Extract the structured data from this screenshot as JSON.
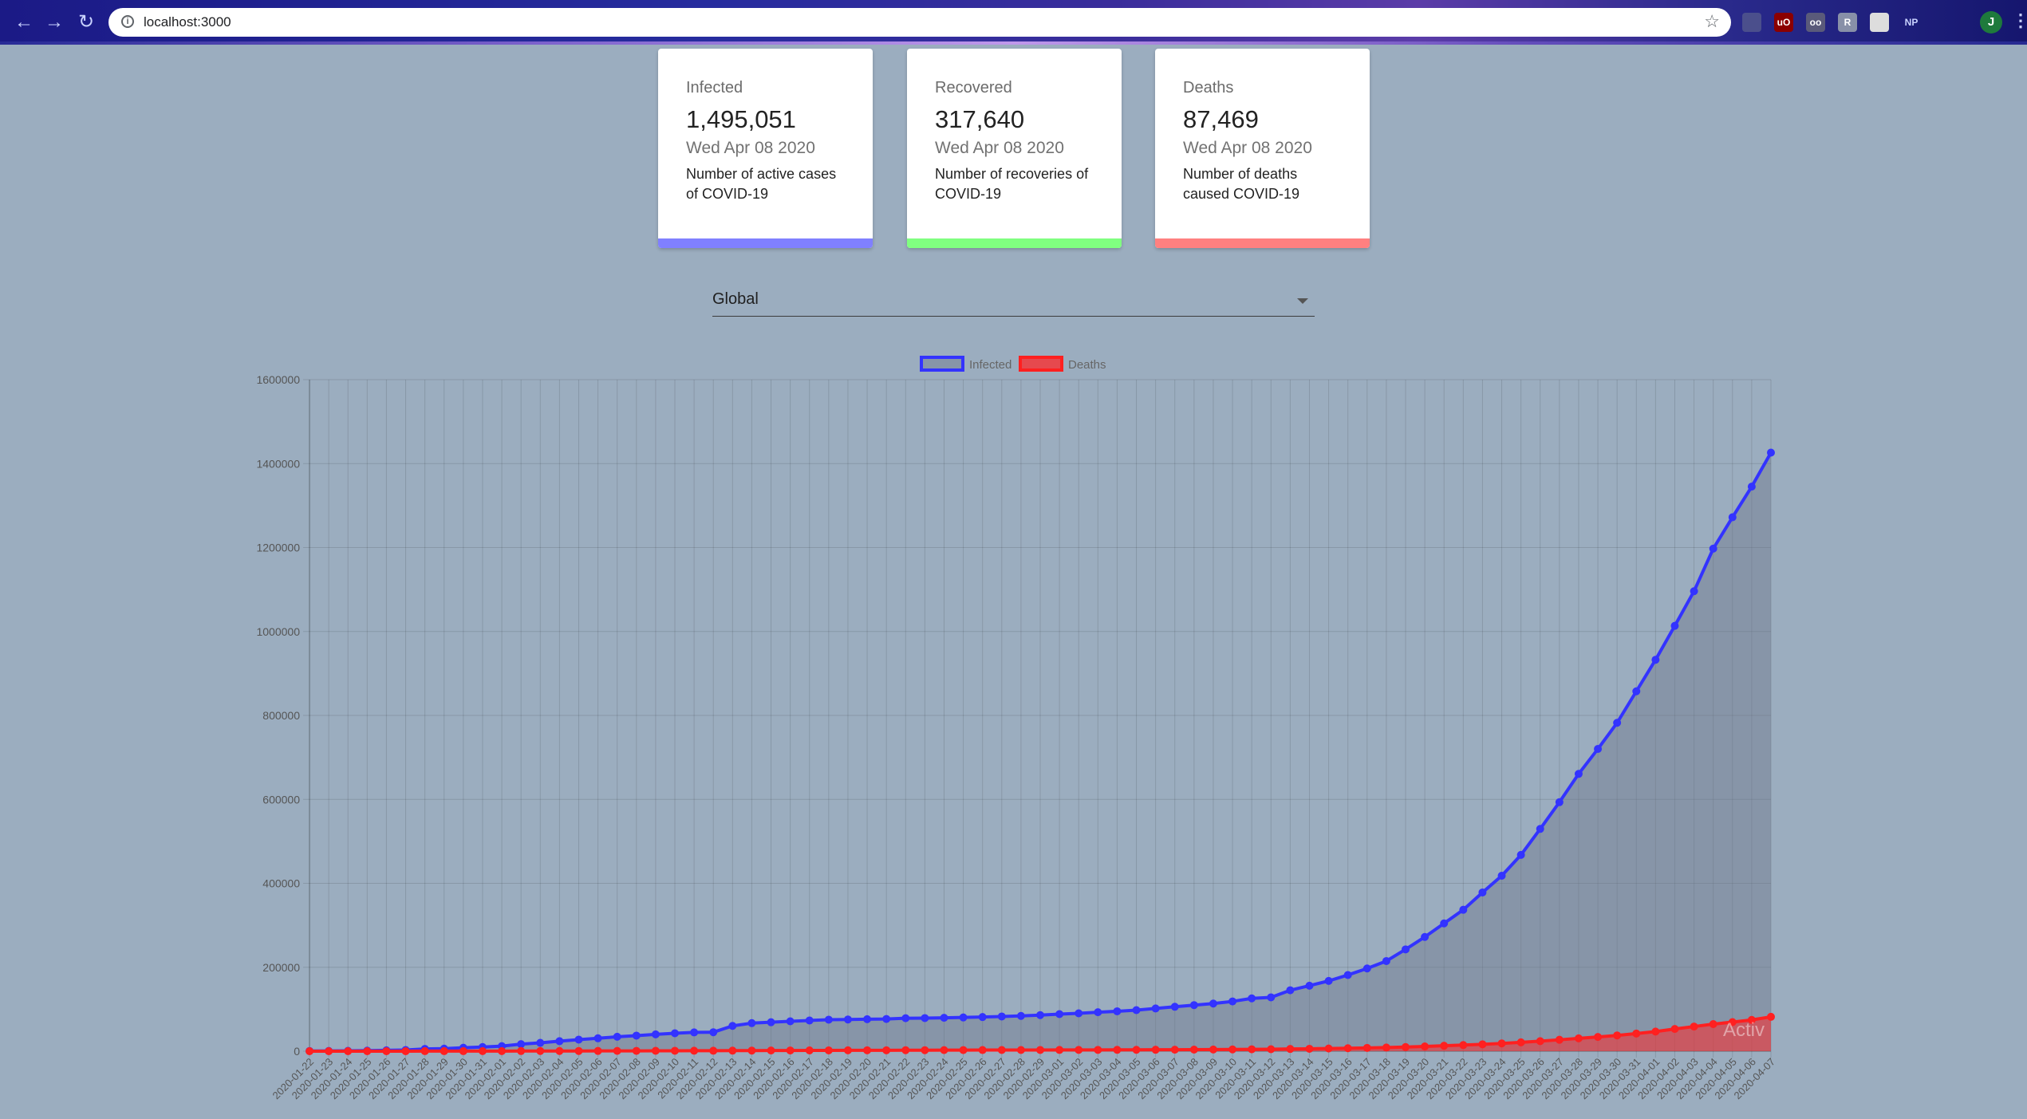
{
  "browser": {
    "url": "localhost:3000",
    "back_icon": "arrow-left-icon",
    "forward_icon": "arrow-right-icon",
    "reload_icon": "reload-icon",
    "info_icon": "info-icon",
    "bookmark_icon": "star-icon",
    "extensions": [
      {
        "name": "extension-icon-1",
        "label": "",
        "color": "#4b4f8c"
      },
      {
        "name": "extension-icon-2",
        "label": "uO",
        "color": "#8b0000"
      },
      {
        "name": "extension-icon-3",
        "label": "oo",
        "color": "#5a5a7a"
      },
      {
        "name": "extension-icon-4",
        "label": "R",
        "color": "#8890a8"
      },
      {
        "name": "extension-icon-5",
        "label": "",
        "color": "#dddddd"
      },
      {
        "name": "extension-icon-6",
        "label": "NP",
        "color": "transparent"
      },
      {
        "name": "extension-icon-7",
        "label": "",
        "color": "transparent"
      }
    ],
    "avatar_label": "J",
    "menu_icon": "vertical-dots-icon"
  },
  "cards": [
    {
      "title": "Infected",
      "value": "1,495,051",
      "date": "Wed Apr 08 2020",
      "desc_line1": "Number of active cases",
      "desc_line2": "of COVID-19",
      "color": "#8080ff"
    },
    {
      "title": "Recovered",
      "value": "317,640",
      "date": "Wed Apr 08 2020",
      "desc_line1": "Number of recoveries of",
      "desc_line2": "COVID-19",
      "color": "#80ff80"
    },
    {
      "title": "Deaths",
      "value": "87,469",
      "date": "Wed Apr 08 2020",
      "desc_line1": "Number of deaths",
      "desc_line2": "caused COVID-19",
      "color": "#ff8080"
    }
  ],
  "select": {
    "value": "Global"
  },
  "watermark": "Activ",
  "chart_data": {
    "type": "line",
    "x_start": "2020-01-22",
    "x": [
      "2020-01-22",
      "2020-01-23",
      "2020-01-24",
      "2020-01-25",
      "2020-01-26",
      "2020-01-27",
      "2020-01-28",
      "2020-01-29",
      "2020-01-30",
      "2020-01-31",
      "2020-02-01",
      "2020-02-02",
      "2020-02-03",
      "2020-02-04",
      "2020-02-05",
      "2020-02-06",
      "2020-02-07",
      "2020-02-08",
      "2020-02-09",
      "2020-02-10",
      "2020-02-11",
      "2020-02-12",
      "2020-02-13",
      "2020-02-14",
      "2020-02-15",
      "2020-02-16",
      "2020-02-17",
      "2020-02-18",
      "2020-02-19",
      "2020-02-20",
      "2020-02-21",
      "2020-02-22",
      "2020-02-23",
      "2020-02-24",
      "2020-02-25",
      "2020-02-26",
      "2020-02-27",
      "2020-02-28",
      "2020-02-29",
      "2020-03-01",
      "2020-03-02",
      "2020-03-03",
      "2020-03-04",
      "2020-03-05",
      "2020-03-06",
      "2020-03-07",
      "2020-03-08",
      "2020-03-09",
      "2020-03-10",
      "2020-03-11",
      "2020-03-12",
      "2020-03-13",
      "2020-03-14",
      "2020-03-15",
      "2020-03-16",
      "2020-03-17",
      "2020-03-18",
      "2020-03-19",
      "2020-03-20",
      "2020-03-21",
      "2020-03-22",
      "2020-03-23",
      "2020-03-24",
      "2020-03-25",
      "2020-03-26",
      "2020-03-27",
      "2020-03-28",
      "2020-03-29",
      "2020-03-30",
      "2020-03-31",
      "2020-04-01",
      "2020-04-02",
      "2020-04-03",
      "2020-04-04",
      "2020-04-05",
      "2020-04-06",
      "2020-04-07"
    ],
    "series": [
      {
        "name": "Infected",
        "color": "#3333ff",
        "values": [
          555,
          654,
          941,
          1434,
          2118,
          2927,
          5578,
          6166,
          8234,
          9927,
          12038,
          16787,
          19881,
          23892,
          27635,
          30794,
          34391,
          37120,
          40150,
          42762,
          44802,
          45221,
          60368,
          66885,
          69030,
          71224,
          73258,
          75136,
          75639,
          76197,
          76819,
          78572,
          78958,
          79561,
          80406,
          81388,
          82746,
          84112,
          86011,
          88369,
          90306,
          92840,
          95120,
          97886,
          101801,
          105847,
          109821,
          113590,
          118620,
          125875,
          128352,
          145205,
          156101,
          167454,
          181574,
          197102,
          214821,
          242570,
          272208,
          304507,
          336953,
          378235,
          418045,
          467653,
          529591,
          593291,
          660706,
          720117,
          782389,
          857487,
          932605,
          1013466,
          1095917,
          1197405,
          1272115,
          1345101,
          1426096
        ]
      },
      {
        "name": "Deaths",
        "color": "#ff2020",
        "values": [
          17,
          18,
          26,
          42,
          56,
          82,
          131,
          133,
          171,
          213,
          259,
          362,
          426,
          492,
          564,
          634,
          719,
          806,
          906,
          1013,
          1113,
          1118,
          1371,
          1523,
          1666,
          1770,
          1868,
          2007,
          2122,
          2247,
          2251,
          2458,
          2469,
          2629,
          2708,
          2770,
          2814,
          2872,
          2941,
          2996,
          3085,
          3160,
          3254,
          3348,
          3460,
          3558,
          3802,
          3988,
          4262,
          4615,
          4720,
          5404,
          5819,
          6440,
          7126,
          7905,
          8733,
          9867,
          11299,
          12973,
          14623,
          16497,
          18615,
          21181,
          23970,
          27198,
          30652,
          33925,
          37582,
          42107,
          46809,
          52983,
          58787,
          64606,
          69374,
          74565,
          81865
        ]
      }
    ],
    "ylim": [
      0,
      1600000
    ],
    "yticks": [
      "0",
      "200000",
      "400000",
      "600000",
      "800000",
      "1000000",
      "1200000",
      "1400000",
      "1600000"
    ],
    "grid": true,
    "legend": "top-center"
  }
}
